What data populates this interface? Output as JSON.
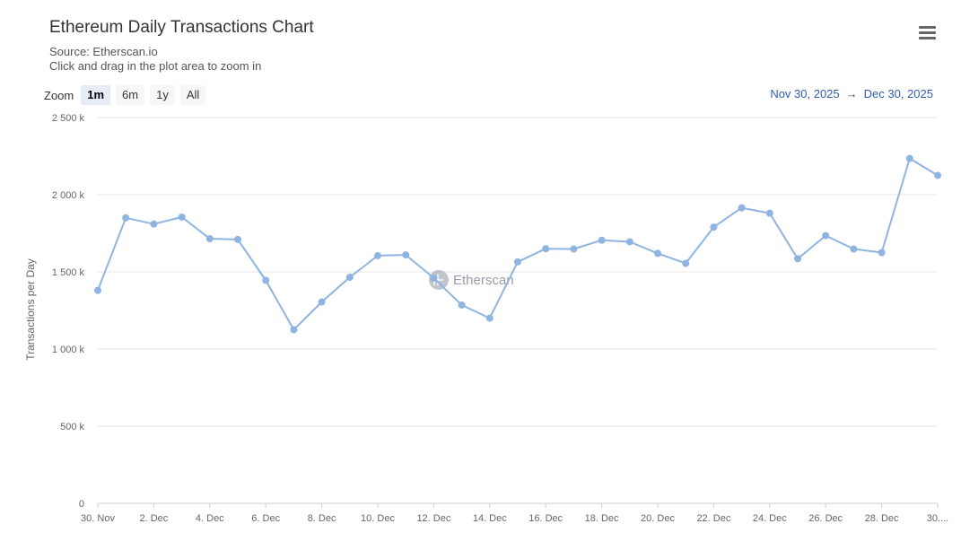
{
  "header": {
    "title": "Ethereum Daily Transactions Chart",
    "source": "Source: Etherscan.io",
    "hint": "Click and drag in the plot area to zoom in"
  },
  "zoom": {
    "label": "Zoom",
    "buttons": [
      "1m",
      "6m",
      "1y",
      "All"
    ],
    "active": "1m"
  },
  "range": {
    "from": "Nov 30, 2025",
    "arrow": "→",
    "to": "Dec 30, 2025"
  },
  "menu": {
    "icon": "hamburger-menu-icon"
  },
  "watermark": {
    "text": "Etherscan"
  },
  "chart_data": {
    "type": "line",
    "title": "Ethereum Daily Transactions Chart",
    "ylabel": "Transactions per Day",
    "xlabel": "",
    "ylim": [
      0,
      2500000
    ],
    "yticks": [
      {
        "value": 0,
        "label": "0"
      },
      {
        "value": 500000,
        "label": "500 k"
      },
      {
        "value": 1000000,
        "label": "1 000 k"
      },
      {
        "value": 1500000,
        "label": "1 500 k"
      },
      {
        "value": 2000000,
        "label": "2 000 k"
      },
      {
        "value": 2500000,
        "label": "2 500 k"
      }
    ],
    "xticks": [
      {
        "index": 0,
        "label": "30. Nov"
      },
      {
        "index": 2,
        "label": "2. Dec"
      },
      {
        "index": 4,
        "label": "4. Dec"
      },
      {
        "index": 6,
        "label": "6. Dec"
      },
      {
        "index": 8,
        "label": "8. Dec"
      },
      {
        "index": 10,
        "label": "10. Dec"
      },
      {
        "index": 12,
        "label": "12. Dec"
      },
      {
        "index": 14,
        "label": "14. Dec"
      },
      {
        "index": 16,
        "label": "16. Dec"
      },
      {
        "index": 18,
        "label": "18. Dec"
      },
      {
        "index": 20,
        "label": "20. Dec"
      },
      {
        "index": 22,
        "label": "22. Dec"
      },
      {
        "index": 24,
        "label": "24. Dec"
      },
      {
        "index": 26,
        "label": "26. Dec"
      },
      {
        "index": 28,
        "label": "28. Dec"
      },
      {
        "index": 30,
        "label": "30...."
      }
    ],
    "x": [
      "2025-11-30",
      "2025-12-01",
      "2025-12-02",
      "2025-12-03",
      "2025-12-04",
      "2025-12-05",
      "2025-12-06",
      "2025-12-07",
      "2025-12-08",
      "2025-12-09",
      "2025-12-10",
      "2025-12-11",
      "2025-12-12",
      "2025-12-13",
      "2025-12-14",
      "2025-12-15",
      "2025-12-16",
      "2025-12-17",
      "2025-12-18",
      "2025-12-19",
      "2025-12-20",
      "2025-12-21",
      "2025-12-22",
      "2025-12-23",
      "2025-12-24",
      "2025-12-25",
      "2025-12-26",
      "2025-12-27",
      "2025-12-28",
      "2025-12-29",
      "2025-12-30"
    ],
    "series": [
      {
        "values": [
          1380000,
          1850000,
          1810000,
          1855000,
          1715000,
          1710000,
          1445000,
          1125000,
          1305000,
          1465000,
          1605000,
          1610000,
          1460000,
          1285000,
          1200000,
          1565000,
          1650000,
          1648000,
          1705000,
          1695000,
          1620000,
          1555000,
          1790000,
          1915000,
          1880000,
          1585000,
          1735000,
          1648000,
          1625000,
          2235000,
          2125000
        ],
        "color": "#90b4e1"
      }
    ],
    "grid": true,
    "legend": "none"
  }
}
